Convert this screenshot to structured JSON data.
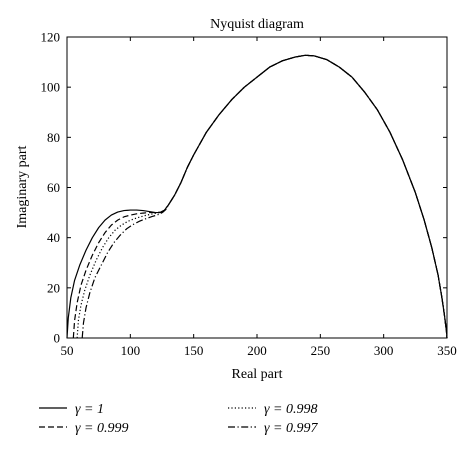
{
  "chart_data": {
    "type": "line",
    "title": "Nyquist diagram",
    "xlabel": "Real part",
    "ylabel": "Imaginary part",
    "xlim": [
      50,
      350
    ],
    "ylim": [
      0,
      120
    ],
    "xticks": [
      50,
      100,
      150,
      200,
      250,
      300,
      350
    ],
    "yticks": [
      0,
      20,
      40,
      60,
      80,
      100,
      120
    ],
    "grid": false,
    "legend_position": "bottom",
    "series": [
      {
        "name": "γ = 1",
        "style": "solid",
        "color": "#000000",
        "points": [
          [
            50,
            0
          ],
          [
            51,
            8
          ],
          [
            53,
            16
          ],
          [
            56,
            23
          ],
          [
            60,
            29
          ],
          [
            65,
            35
          ],
          [
            70,
            40
          ],
          [
            75,
            44
          ],
          [
            80,
            47
          ],
          [
            85,
            49
          ],
          [
            90,
            50.2
          ],
          [
            95,
            50.8
          ],
          [
            100,
            51
          ],
          [
            105,
            51
          ],
          [
            110,
            50.8
          ],
          [
            115,
            50.4
          ],
          [
            120,
            50
          ],
          [
            124,
            50
          ],
          [
            127,
            51
          ],
          [
            130,
            53
          ],
          [
            135,
            57
          ],
          [
            140,
            62
          ],
          [
            145,
            68
          ],
          [
            150,
            73
          ],
          [
            160,
            82
          ],
          [
            170,
            89
          ],
          [
            180,
            95
          ],
          [
            190,
            100
          ],
          [
            200,
            104
          ],
          [
            210,
            108
          ],
          [
            220,
            110.5
          ],
          [
            230,
            112
          ],
          [
            238,
            112.7
          ],
          [
            245,
            112.5
          ],
          [
            255,
            111
          ],
          [
            265,
            108
          ],
          [
            275,
            104
          ],
          [
            285,
            98
          ],
          [
            295,
            91
          ],
          [
            305,
            82
          ],
          [
            315,
            71
          ],
          [
            325,
            58
          ],
          [
            332,
            47
          ],
          [
            338,
            36
          ],
          [
            343,
            25
          ],
          [
            346,
            16
          ],
          [
            348,
            9
          ],
          [
            349.5,
            3
          ],
          [
            350,
            0
          ]
        ]
      },
      {
        "name": "γ = 0.999",
        "style": "dashed",
        "color": "#000000",
        "points": [
          [
            55,
            0
          ],
          [
            56,
            7
          ],
          [
            58,
            14
          ],
          [
            61,
            21
          ],
          [
            65,
            27
          ],
          [
            70,
            33
          ],
          [
            75,
            38
          ],
          [
            80,
            42
          ],
          [
            85,
            45
          ],
          [
            90,
            47
          ],
          [
            95,
            48.3
          ],
          [
            100,
            49
          ],
          [
            105,
            49.5
          ],
          [
            110,
            49.8
          ],
          [
            115,
            50
          ],
          [
            120,
            50
          ],
          [
            124,
            50.2
          ],
          [
            127,
            51
          ],
          [
            130,
            53
          ],
          [
            135,
            57
          ],
          [
            140,
            62
          ],
          [
            145,
            68
          ],
          [
            150,
            73
          ],
          [
            160,
            82
          ],
          [
            170,
            89
          ],
          [
            180,
            95
          ],
          [
            190,
            100
          ],
          [
            200,
            104
          ],
          [
            210,
            108
          ],
          [
            220,
            110.5
          ],
          [
            230,
            112
          ],
          [
            238,
            112.7
          ],
          [
            245,
            112.5
          ],
          [
            255,
            111
          ],
          [
            265,
            108
          ],
          [
            275,
            104
          ],
          [
            285,
            98
          ],
          [
            295,
            91
          ],
          [
            305,
            82
          ],
          [
            315,
            71
          ],
          [
            325,
            58
          ],
          [
            332,
            47
          ],
          [
            338,
            36
          ],
          [
            343,
            25
          ],
          [
            346,
            16
          ],
          [
            348,
            9
          ],
          [
            349.5,
            3
          ],
          [
            350,
            0
          ]
        ]
      },
      {
        "name": "γ = 0.998",
        "style": "dotted",
        "color": "#000000",
        "points": [
          [
            58,
            0
          ],
          [
            59,
            7
          ],
          [
            61,
            13
          ],
          [
            64,
            19
          ],
          [
            68,
            25
          ],
          [
            73,
            31
          ],
          [
            78,
            36
          ],
          [
            83,
            40
          ],
          [
            88,
            43
          ],
          [
            93,
            45
          ],
          [
            98,
            46.5
          ],
          [
            103,
            47.5
          ],
          [
            108,
            48.3
          ],
          [
            113,
            49
          ],
          [
            118,
            49.5
          ],
          [
            122,
            49.9
          ],
          [
            125,
            50.3
          ],
          [
            127,
            51
          ],
          [
            130,
            53
          ],
          [
            135,
            57
          ],
          [
            140,
            62
          ],
          [
            145,
            68
          ],
          [
            150,
            73
          ],
          [
            160,
            82
          ],
          [
            170,
            89
          ],
          [
            180,
            95
          ],
          [
            190,
            100
          ],
          [
            200,
            104
          ],
          [
            210,
            108
          ],
          [
            220,
            110.5
          ],
          [
            230,
            112
          ],
          [
            238,
            112.7
          ],
          [
            245,
            112.5
          ],
          [
            255,
            111
          ],
          [
            265,
            108
          ],
          [
            275,
            104
          ],
          [
            285,
            98
          ],
          [
            295,
            91
          ],
          [
            305,
            82
          ],
          [
            315,
            71
          ],
          [
            325,
            58
          ],
          [
            332,
            47
          ],
          [
            338,
            36
          ],
          [
            343,
            25
          ],
          [
            346,
            16
          ],
          [
            348,
            9
          ],
          [
            349.5,
            3
          ],
          [
            350,
            0
          ]
        ]
      },
      {
        "name": "γ = 0.997",
        "style": "dashdot",
        "color": "#000000",
        "points": [
          [
            62,
            0
          ],
          [
            63,
            6
          ],
          [
            65,
            12
          ],
          [
            68,
            18
          ],
          [
            72,
            24
          ],
          [
            77,
            29
          ],
          [
            82,
            34
          ],
          [
            87,
            38
          ],
          [
            92,
            41
          ],
          [
            97,
            43.5
          ],
          [
            102,
            45.2
          ],
          [
            107,
            46.5
          ],
          [
            112,
            47.5
          ],
          [
            117,
            48.4
          ],
          [
            121,
            49
          ],
          [
            124,
            49.6
          ],
          [
            126,
            50.3
          ],
          [
            128,
            51.2
          ],
          [
            130,
            53
          ],
          [
            135,
            57
          ],
          [
            140,
            62
          ],
          [
            145,
            68
          ],
          [
            150,
            73
          ],
          [
            160,
            82
          ],
          [
            170,
            89
          ],
          [
            180,
            95
          ],
          [
            190,
            100
          ],
          [
            200,
            104
          ],
          [
            210,
            108
          ],
          [
            220,
            110.5
          ],
          [
            230,
            112
          ],
          [
            238,
            112.7
          ],
          [
            245,
            112.5
          ],
          [
            255,
            111
          ],
          [
            265,
            108
          ],
          [
            275,
            104
          ],
          [
            285,
            98
          ],
          [
            295,
            91
          ],
          [
            305,
            82
          ],
          [
            315,
            71
          ],
          [
            325,
            58
          ],
          [
            332,
            47
          ],
          [
            338,
            36
          ],
          [
            343,
            25
          ],
          [
            346,
            16
          ],
          [
            348,
            9
          ],
          [
            349.5,
            3
          ],
          [
            350,
            0
          ]
        ]
      }
    ]
  }
}
